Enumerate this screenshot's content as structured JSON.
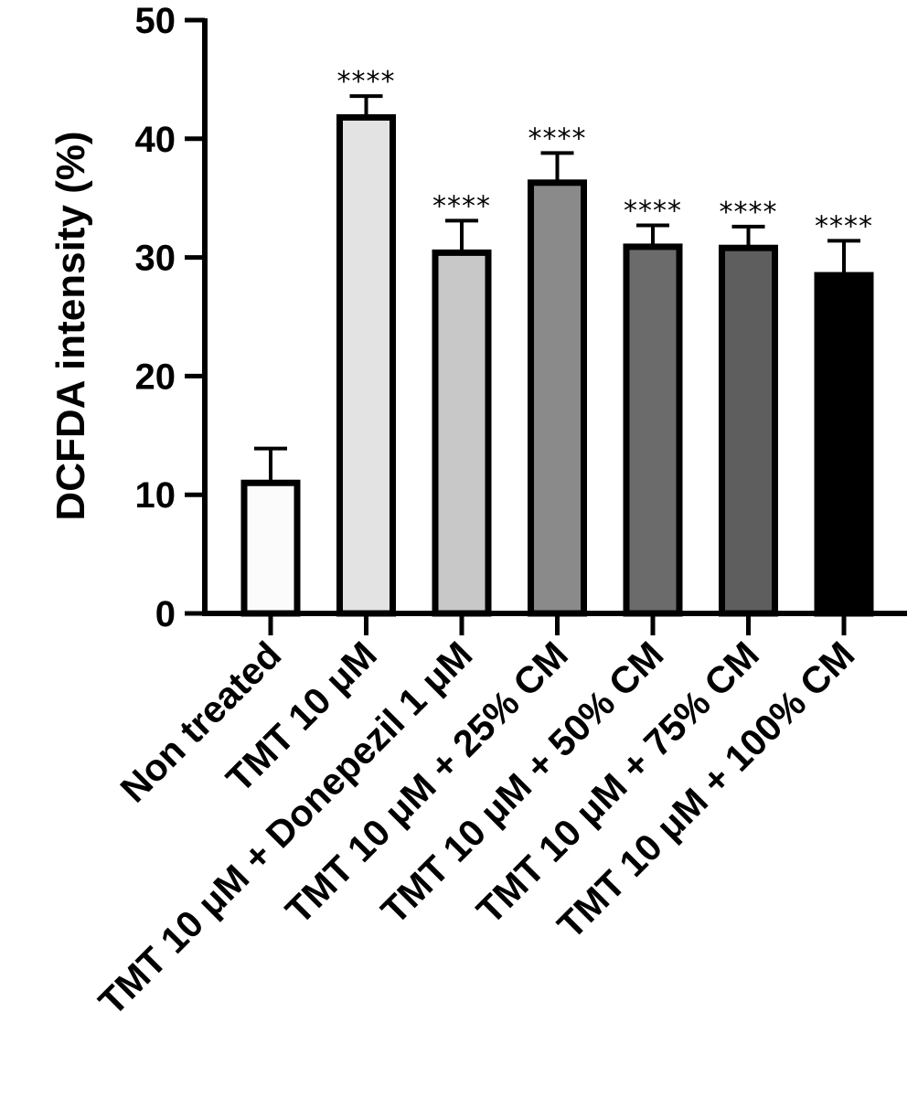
{
  "chart_data": {
    "type": "bar",
    "ylabel": "DCFDA intensity (%)",
    "xlabel": "",
    "ylim": [
      0,
      50
    ],
    "yticks": [
      0,
      10,
      20,
      30,
      40,
      50
    ],
    "grid": false,
    "categories": [
      "Non treated",
      "TMT 10  μM",
      "TMT 10  μM + Donepezil 1 μM",
      "TMT 10  μM + 25% CM",
      "TMT 10  μM + 50% CM",
      "TMT 10  μM + 75% CM",
      "TMT 10  μM + 100% CM"
    ],
    "values": [
      11.0,
      41.8,
      30.4,
      36.3,
      30.9,
      30.8,
      28.5
    ],
    "errors": [
      2.9,
      1.8,
      2.7,
      2.5,
      1.8,
      1.8,
      2.9
    ],
    "annotations": [
      "",
      "****",
      "****",
      "****",
      "****",
      "****",
      "****"
    ],
    "bar_colors": [
      "#fbfbfb",
      "#e3e3e3",
      "#c8c8c8",
      "#8a8a8a",
      "#6b6b6b",
      "#5e5e5e",
      "#000000"
    ],
    "edge_color": "#000000"
  }
}
